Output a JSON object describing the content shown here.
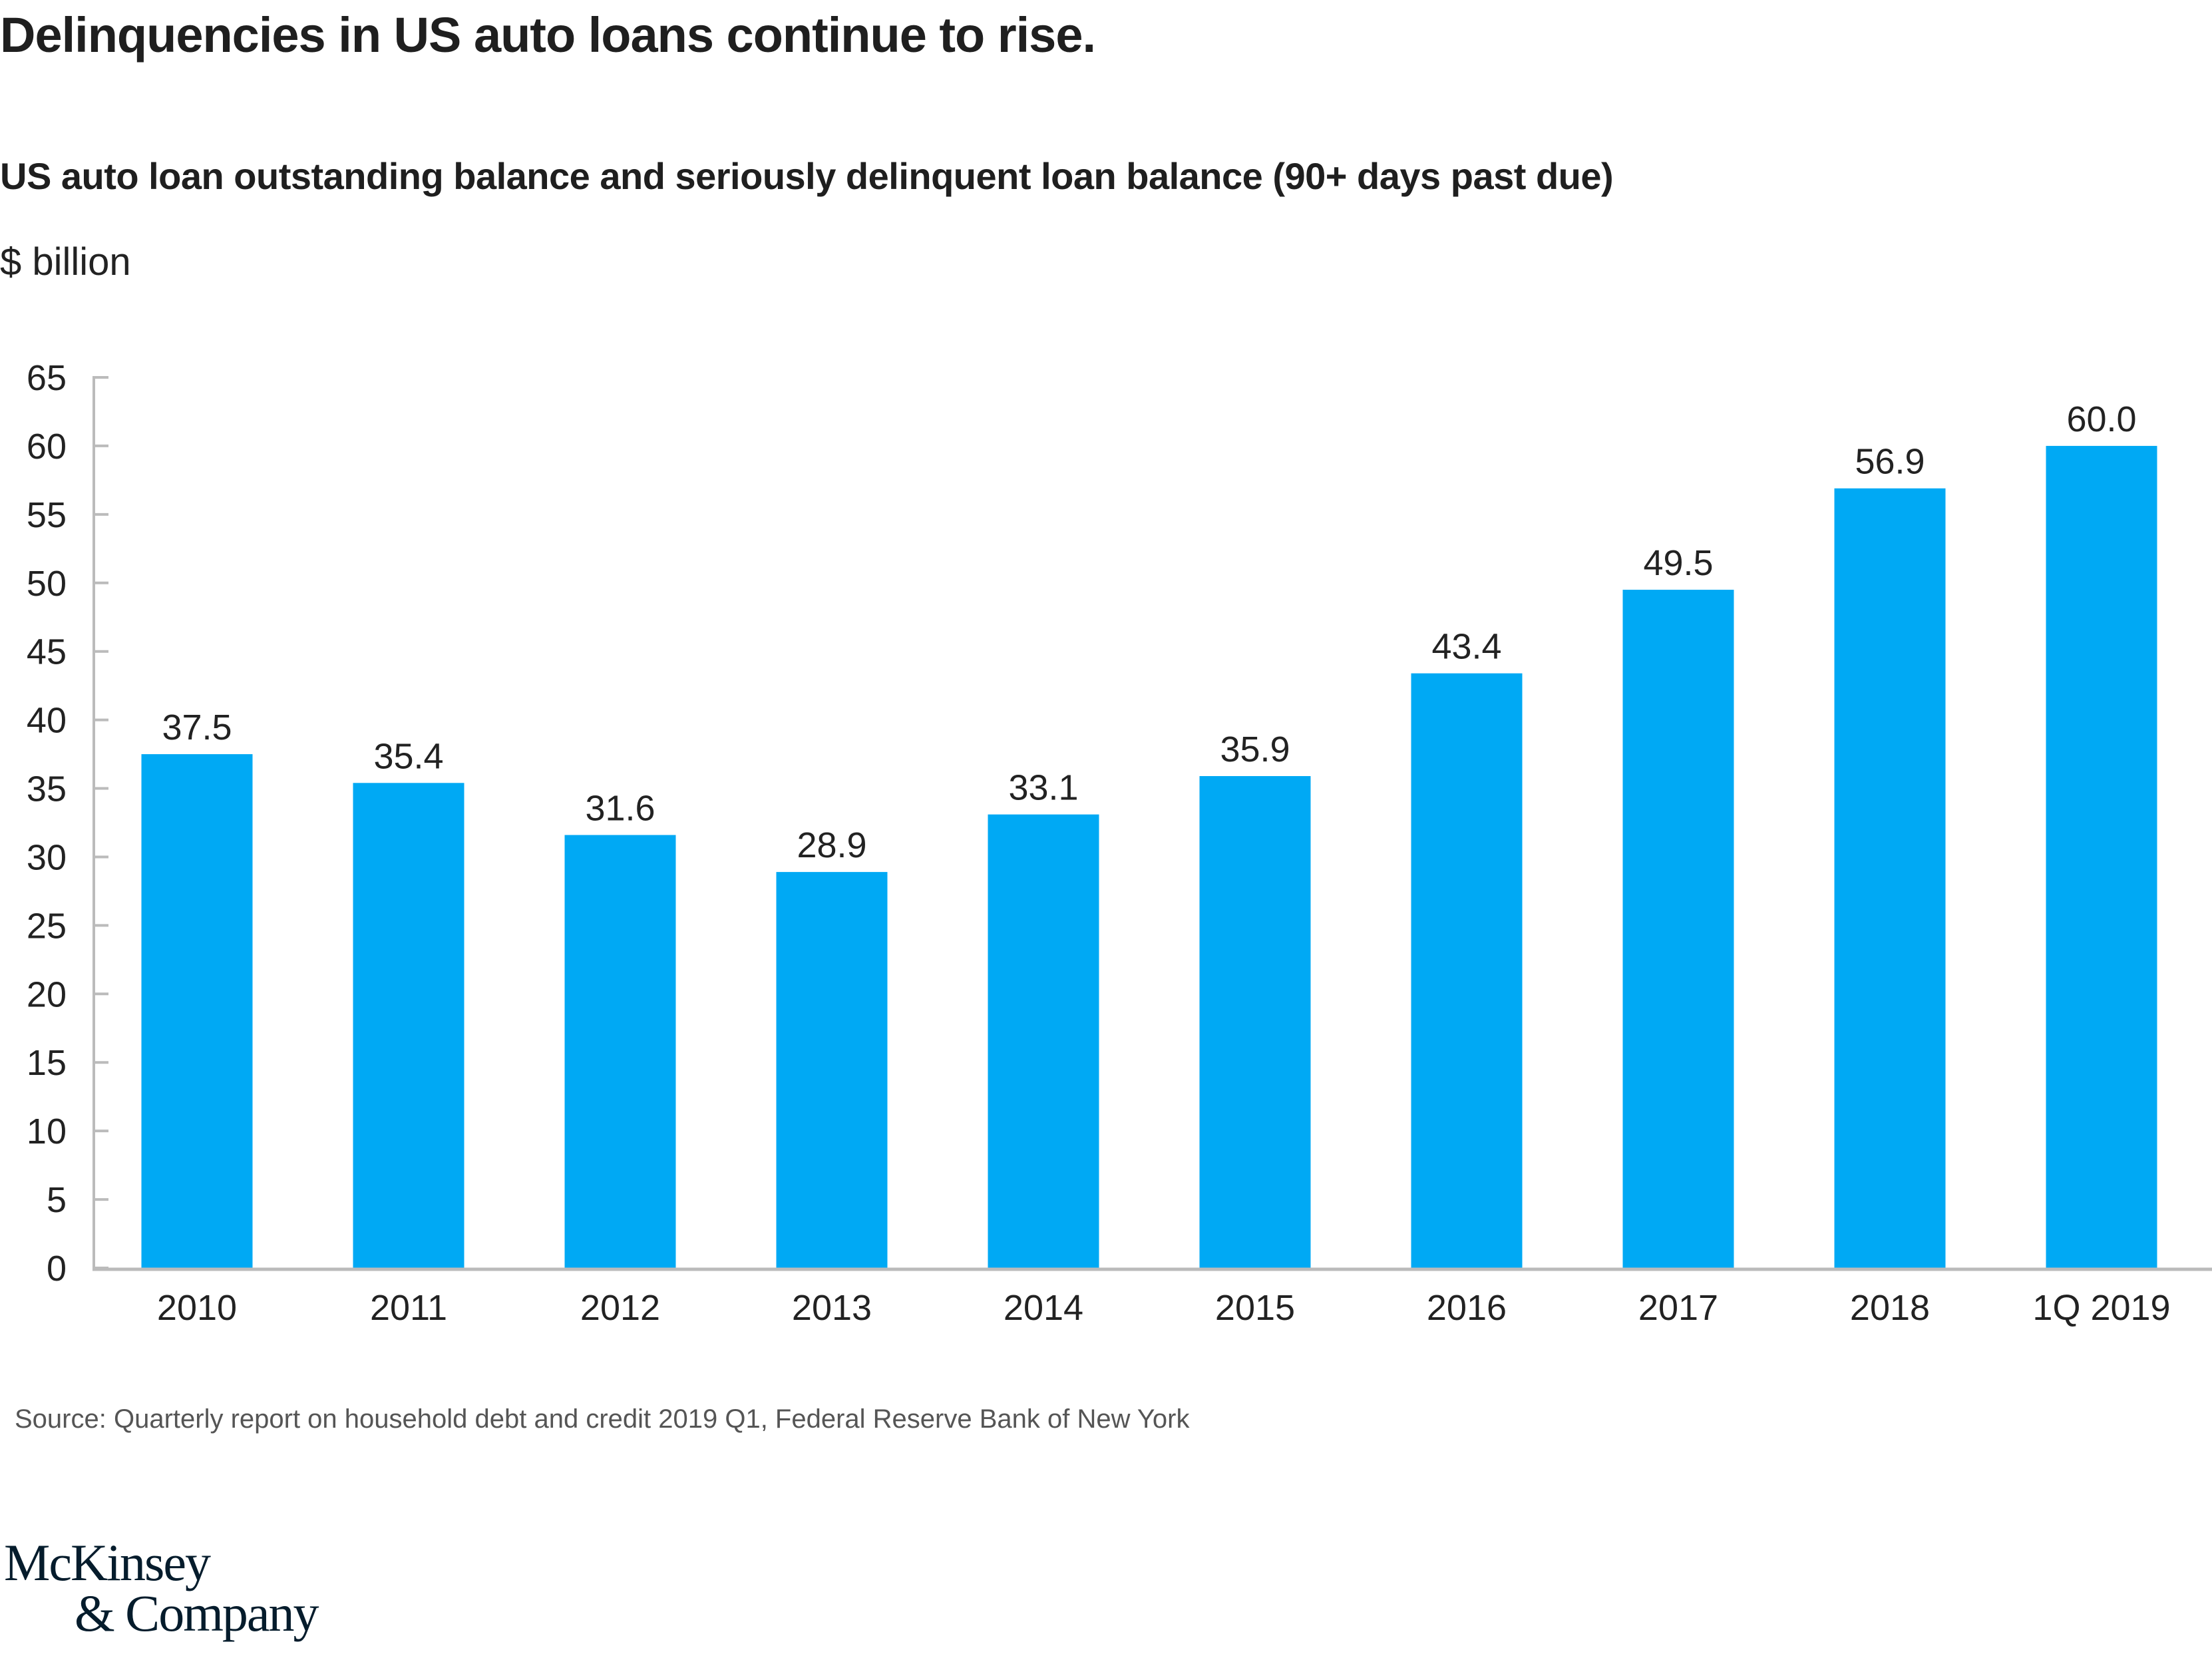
{
  "header": {
    "title": "Delinquencies in US auto loans continue to rise.",
    "subtitle": "US auto loan outstanding balance and seriously delinquent loan balance (90+ days past due)",
    "unit": "$ billion"
  },
  "footer": {
    "source": "Source: Quarterly report on household debt and credit 2019 Q1, Federal Reserve Bank of New York",
    "logo_line1": "McKinsey",
    "logo_line2": "& Company"
  },
  "colors": {
    "bar": "#00a9f4",
    "axis": "#bbbbbb",
    "text": "#222222"
  },
  "chart_data": {
    "type": "bar",
    "title": "US auto loan outstanding balance and seriously delinquent loan balance (90+ days past due)",
    "xlabel": "",
    "ylabel": "$ billion",
    "categories": [
      "2010",
      "2011",
      "2012",
      "2013",
      "2014",
      "2015",
      "2016",
      "2017",
      "2018",
      "1Q 2019"
    ],
    "values": [
      37.5,
      35.4,
      31.6,
      28.9,
      33.1,
      35.9,
      43.4,
      49.5,
      56.9,
      60.0
    ],
    "value_labels": [
      "37.5",
      "35.4",
      "31.6",
      "28.9",
      "33.1",
      "35.9",
      "43.4",
      "49.5",
      "56.9",
      "60.0"
    ],
    "ylim": [
      0,
      65
    ],
    "yticks": [
      0,
      5,
      10,
      15,
      20,
      25,
      30,
      35,
      40,
      45,
      50,
      55,
      60,
      65
    ],
    "ytick_labels": [
      "0",
      "5",
      "10",
      "15",
      "20",
      "25",
      "30",
      "35",
      "40",
      "45",
      "50",
      "55",
      "60",
      "65"
    ],
    "grid": false,
    "legend": "none"
  }
}
